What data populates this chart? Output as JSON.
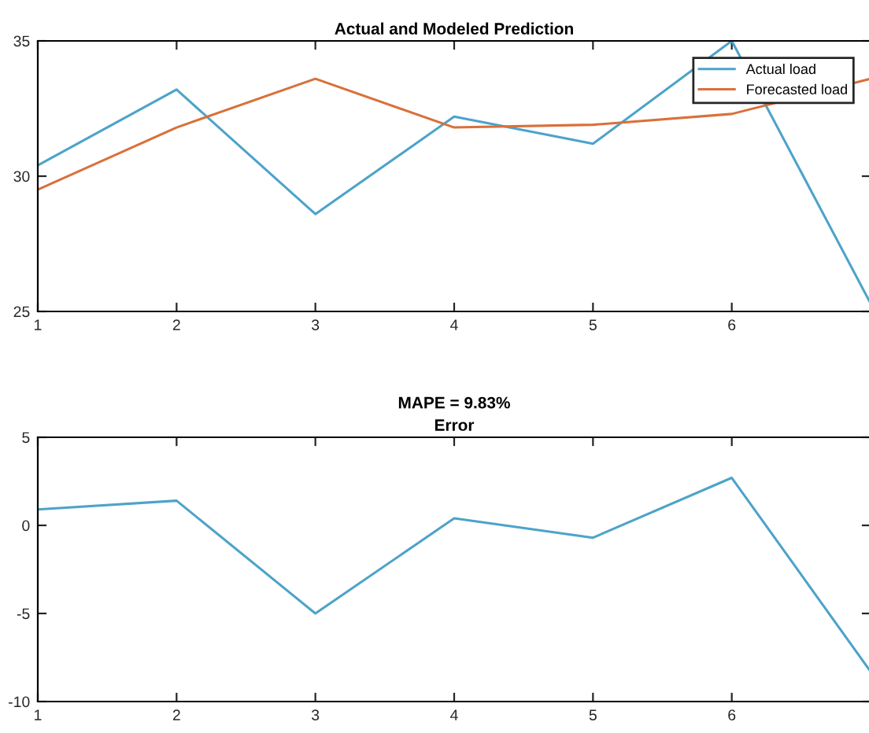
{
  "chart_data": [
    {
      "type": "line",
      "title": "Actual and Modeled Prediction",
      "x": [
        1,
        2,
        3,
        4,
        5,
        6,
        7
      ],
      "xlim": [
        1,
        7
      ],
      "xticks": [
        1,
        2,
        3,
        4,
        5,
        6
      ],
      "ylim": [
        25,
        35
      ],
      "yticks": [
        25,
        30,
        35
      ],
      "grid": false,
      "legend": "top right",
      "marker": "none",
      "line_style": "solid",
      "series": [
        {
          "name": "Actual load",
          "color": "#4da3c9",
          "values": [
            30.4,
            33.2,
            28.6,
            32.2,
            31.2,
            35.0,
            25.3
          ]
        },
        {
          "name": "Forecasted load",
          "color": "#d9703a",
          "values": [
            29.5,
            31.8,
            33.6,
            31.8,
            31.9,
            32.3,
            33.6
          ]
        }
      ]
    },
    {
      "type": "line",
      "title": "MAPE = 9.83%\nError",
      "x": [
        1,
        2,
        3,
        4,
        5,
        6,
        7
      ],
      "xlim": [
        1,
        7
      ],
      "xticks": [
        1,
        2,
        3,
        4,
        5,
        6
      ],
      "ylim": [
        -10,
        5
      ],
      "yticks": [
        -10,
        -5,
        0,
        5
      ],
      "grid": false,
      "legend": false,
      "marker": "none",
      "line_style": "solid",
      "series": [
        {
          "color": "#4da3c9",
          "values": [
            0.9,
            1.4,
            -5.0,
            0.4,
            -0.7,
            2.7,
            -8.3
          ]
        }
      ]
    }
  ]
}
